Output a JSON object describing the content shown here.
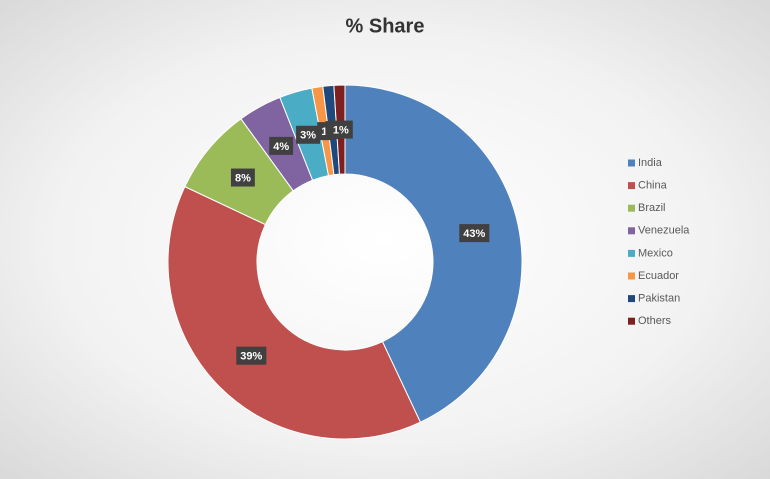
{
  "chart_data": {
    "type": "donut",
    "title": "% Share",
    "categories": [
      "India",
      "China",
      "Brazil",
      "Venezuela",
      "Mexico",
      "Ecuador",
      "Pakistan",
      "Others"
    ],
    "values": [
      43,
      39,
      8,
      4,
      3,
      1,
      1,
      1
    ],
    "value_labels": [
      "43%",
      "39%",
      "8%",
      "4%",
      "3%",
      "1",
      "1",
      "1%"
    ],
    "colors": [
      "#4f81bd",
      "#c0504d",
      "#9bbb59",
      "#8064a2",
      "#4bacc6",
      "#f79646",
      "#1f497d",
      "#7f1f1f"
    ],
    "legend": "right"
  }
}
